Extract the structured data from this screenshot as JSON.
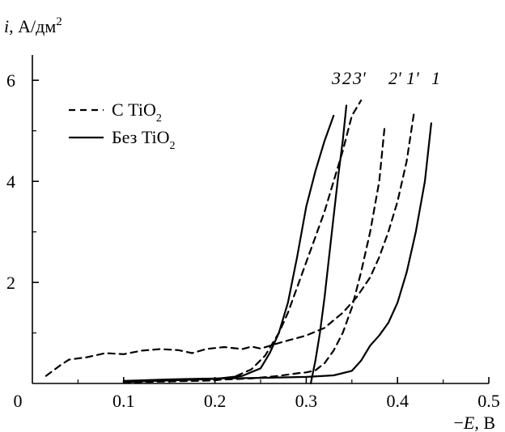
{
  "chart_data": {
    "type": "line",
    "ylabel": "i, А/дм²",
    "ylabel_parts": {
      "var": "i",
      "rest": ", А/дм",
      "sup": "2"
    },
    "xlabel": "−E, В",
    "xlabel_parts": {
      "sign": "−",
      "var": "E",
      "rest": ", В"
    },
    "xlim": [
      0,
      0.5
    ],
    "ylim": [
      0,
      6.5
    ],
    "x_ticks": [
      "0",
      "0.1",
      "0.2",
      "0.3",
      "0.4",
      "0.5"
    ],
    "x_tick_values": [
      0,
      0.1,
      0.2,
      0.3,
      0.4,
      0.5
    ],
    "y_ticks": [
      "2",
      "4",
      "6"
    ],
    "y_tick_values": [
      2,
      4,
      6
    ],
    "grid": false,
    "legend_position": "top-left",
    "legend": [
      {
        "style": "dashed",
        "text": "С TiO",
        "sub": "2"
      },
      {
        "style": "solid",
        "text": "Без TiO",
        "sub": "2"
      }
    ],
    "series": [
      {
        "label": "1",
        "style": "solid",
        "points": [
          [
            0.1,
            0.05
          ],
          [
            0.15,
            0.08
          ],
          [
            0.2,
            0.1
          ],
          [
            0.25,
            0.11
          ],
          [
            0.3,
            0.13
          ],
          [
            0.33,
            0.16
          ],
          [
            0.35,
            0.25
          ],
          [
            0.36,
            0.45
          ],
          [
            0.37,
            0.75
          ],
          [
            0.38,
            0.95
          ],
          [
            0.39,
            1.2
          ],
          [
            0.4,
            1.6
          ],
          [
            0.41,
            2.2
          ],
          [
            0.42,
            3.0
          ],
          [
            0.43,
            4.0
          ],
          [
            0.437,
            5.15
          ]
        ]
      },
      {
        "label": "1'",
        "style": "dashed",
        "points": [
          [
            0.015,
            0.15
          ],
          [
            0.03,
            0.35
          ],
          [
            0.04,
            0.47
          ],
          [
            0.06,
            0.52
          ],
          [
            0.08,
            0.6
          ],
          [
            0.1,
            0.58
          ],
          [
            0.12,
            0.65
          ],
          [
            0.14,
            0.68
          ],
          [
            0.16,
            0.66
          ],
          [
            0.175,
            0.6
          ],
          [
            0.19,
            0.68
          ],
          [
            0.21,
            0.72
          ],
          [
            0.23,
            0.68
          ],
          [
            0.24,
            0.73
          ],
          [
            0.25,
            0.69
          ],
          [
            0.27,
            0.8
          ],
          [
            0.3,
            0.95
          ],
          [
            0.32,
            1.1
          ],
          [
            0.34,
            1.4
          ],
          [
            0.355,
            1.7
          ],
          [
            0.37,
            2.1
          ],
          [
            0.38,
            2.5
          ],
          [
            0.39,
            3.0
          ],
          [
            0.4,
            3.6
          ],
          [
            0.41,
            4.4
          ],
          [
            0.418,
            5.35
          ]
        ]
      },
      {
        "label": "2",
        "style": "solid",
        "points": [
          [
            0.305,
            0.0
          ],
          [
            0.31,
            0.45
          ],
          [
            0.315,
            1.0
          ],
          [
            0.32,
            1.7
          ],
          [
            0.325,
            2.5
          ],
          [
            0.33,
            3.3
          ],
          [
            0.335,
            4.1
          ],
          [
            0.34,
            4.8
          ],
          [
            0.344,
            5.5
          ]
        ]
      },
      {
        "label": "2'",
        "style": "dashed",
        "points": [
          [
            0.1,
            0.03
          ],
          [
            0.15,
            0.05
          ],
          [
            0.2,
            0.07
          ],
          [
            0.24,
            0.1
          ],
          [
            0.27,
            0.15
          ],
          [
            0.29,
            0.2
          ],
          [
            0.3,
            0.22
          ],
          [
            0.31,
            0.26
          ],
          [
            0.32,
            0.4
          ],
          [
            0.33,
            0.65
          ],
          [
            0.34,
            1.0
          ],
          [
            0.35,
            1.5
          ],
          [
            0.36,
            2.2
          ],
          [
            0.37,
            3.0
          ],
          [
            0.38,
            4.0
          ],
          [
            0.386,
            5.1
          ]
        ]
      },
      {
        "label": "3",
        "style": "solid",
        "points": [
          [
            0.1,
            0.03
          ],
          [
            0.15,
            0.06
          ],
          [
            0.2,
            0.09
          ],
          [
            0.23,
            0.15
          ],
          [
            0.25,
            0.3
          ],
          [
            0.26,
            0.6
          ],
          [
            0.27,
            1.0
          ],
          [
            0.28,
            1.6
          ],
          [
            0.29,
            2.5
          ],
          [
            0.3,
            3.5
          ],
          [
            0.31,
            4.2
          ],
          [
            0.32,
            4.8
          ],
          [
            0.33,
            5.3
          ]
        ]
      },
      {
        "label": "3'",
        "style": "dashed",
        "points": [
          [
            0.1,
            0.02
          ],
          [
            0.15,
            0.04
          ],
          [
            0.2,
            0.06
          ],
          [
            0.22,
            0.12
          ],
          [
            0.24,
            0.28
          ],
          [
            0.255,
            0.55
          ],
          [
            0.27,
            1.0
          ],
          [
            0.28,
            1.4
          ],
          [
            0.29,
            1.9
          ],
          [
            0.3,
            2.4
          ],
          [
            0.31,
            2.9
          ],
          [
            0.32,
            3.4
          ],
          [
            0.33,
            4.0
          ],
          [
            0.34,
            4.6
          ],
          [
            0.35,
            5.3
          ],
          [
            0.36,
            5.6
          ]
        ]
      }
    ],
    "curve_labels": [
      "3",
      "2",
      "3'",
      "2'",
      "1'",
      "1"
    ]
  }
}
